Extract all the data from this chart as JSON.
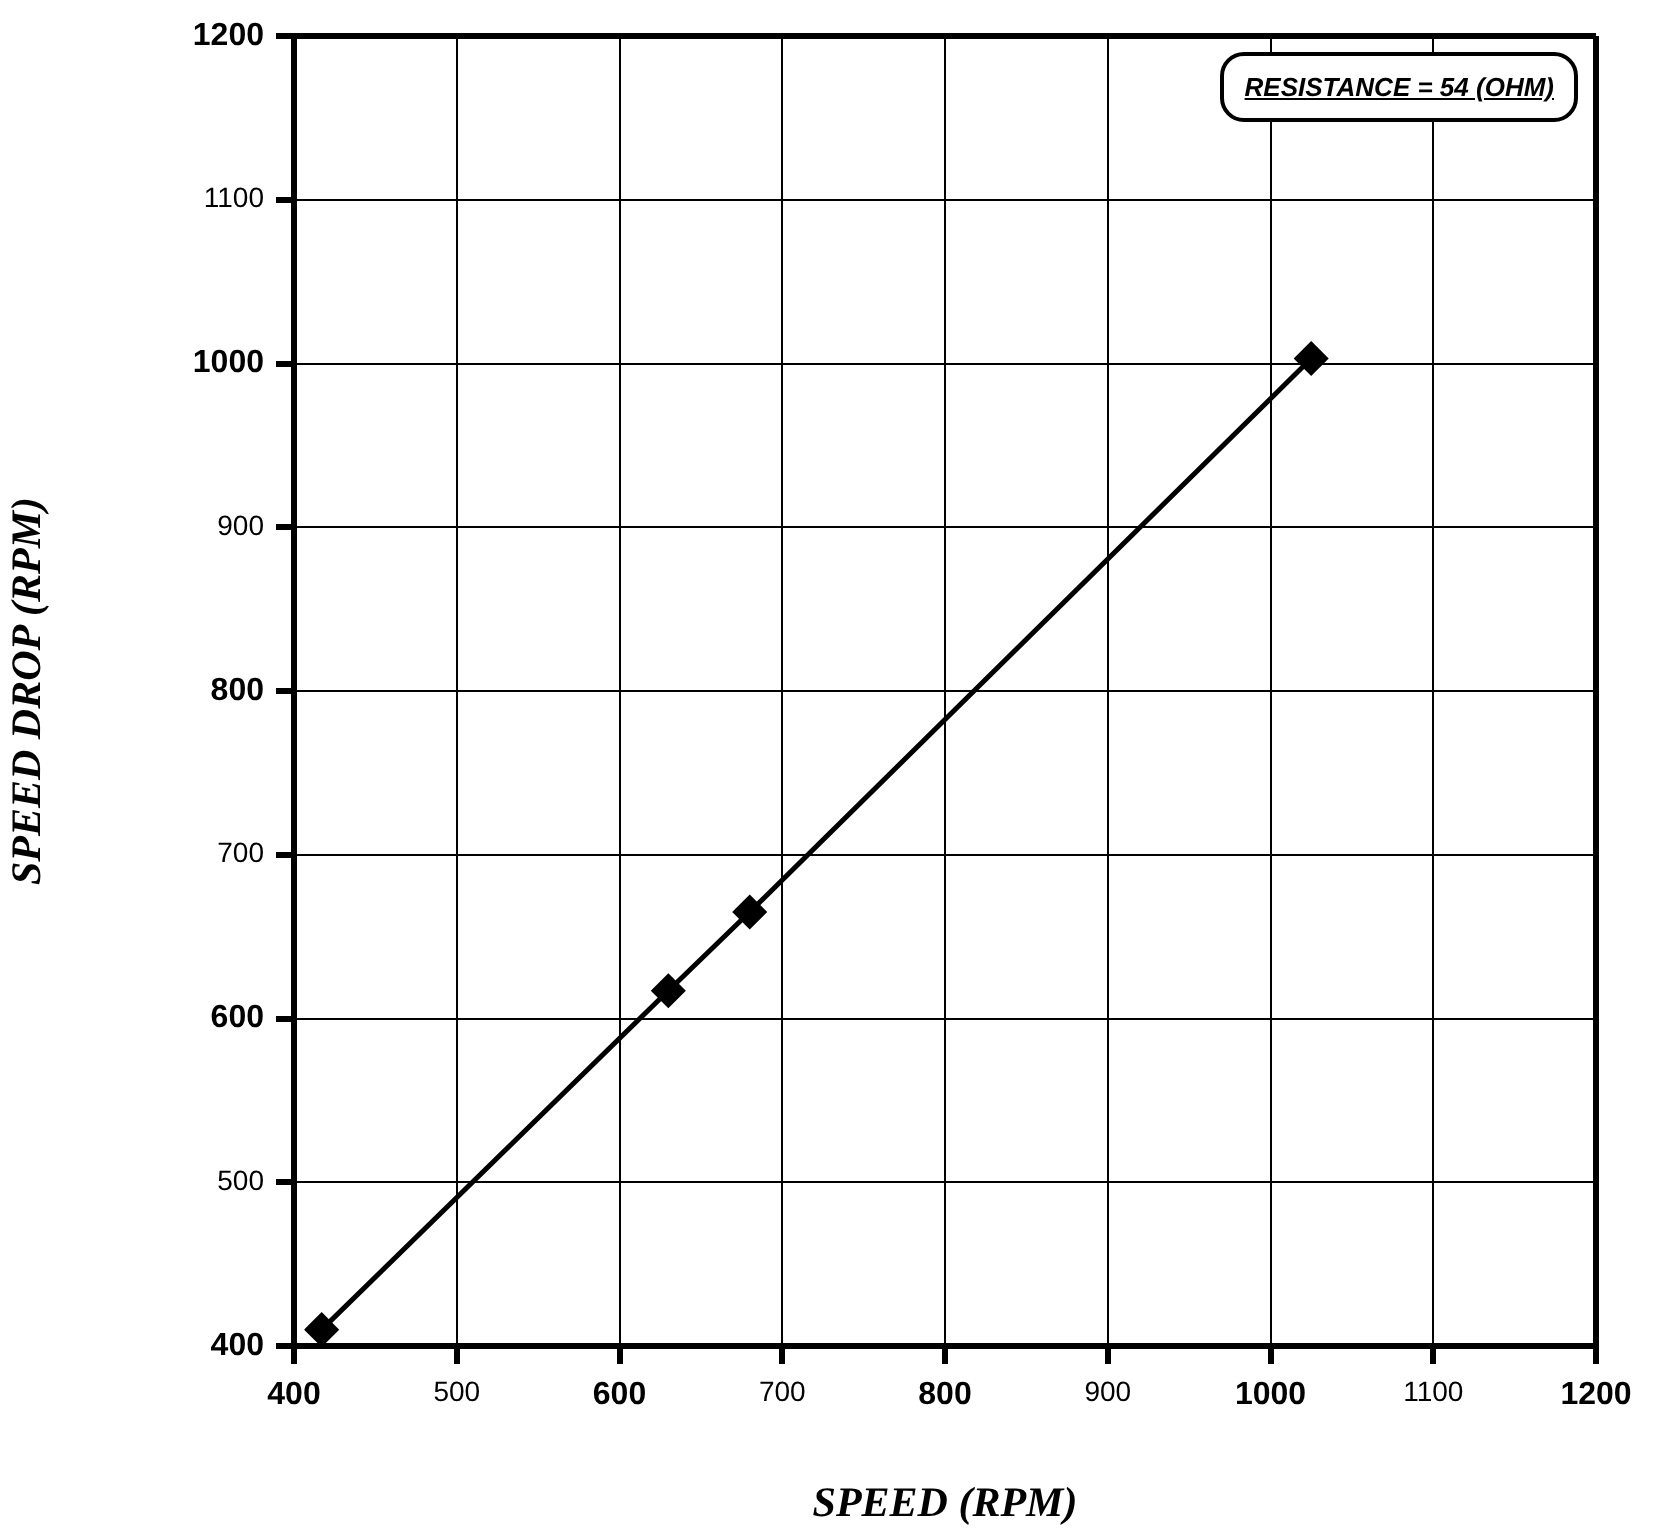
{
  "chart_data": {
    "type": "line",
    "xlabel": "SPEED (RPM)",
    "ylabel": "SPEED DROP (RPM)",
    "annotations": [
      "RESISTANCE = 54 (OHM)"
    ],
    "x": [
      417,
      630,
      680,
      1025
    ],
    "series": [
      {
        "color": "#000000",
        "values": [
          410,
          617,
          665,
          1003
        ]
      }
    ],
    "xlim": [
      400,
      1200
    ],
    "xticks": [
      400,
      500,
      600,
      700,
      800,
      900,
      1000,
      1100,
      1200
    ],
    "ylim": [
      400,
      1200
    ],
    "yticks": [
      400,
      500,
      600,
      700,
      800,
      900,
      1000,
      1100,
      1200
    ],
    "grid": true,
    "marker": "diamond",
    "line_style": "solid",
    "legend": false
  }
}
